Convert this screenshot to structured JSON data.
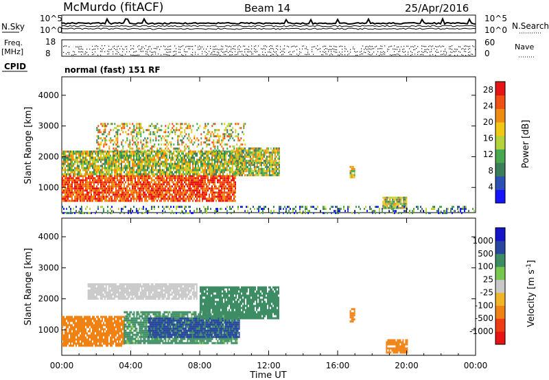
{
  "header": {
    "station": "McMurdo (fitACF)",
    "beam": "Beam 14",
    "date": "25/Apr/2016"
  },
  "noise_panel": {
    "left_label": "N.Sky",
    "right_label": "N.Search",
    "left_ticks": [
      "10^5",
      "10^0"
    ],
    "right_ticks": [
      "10^5",
      "10^0"
    ]
  },
  "freq_panel": {
    "left_label_line1": "Freq.",
    "left_label_line2": "[MHz]",
    "right_label": "Nave",
    "left_ticks": [
      "18",
      "8"
    ],
    "right_ticks": [
      "60",
      "0"
    ]
  },
  "cpid": {
    "label": "CPID",
    "value": "normal (fast) 151 RF"
  },
  "colors": {
    "power_scale": [
      "#1414ff",
      "#2d50b4",
      "#3c7d5a",
      "#48a850",
      "#b4d23c",
      "#f0c814",
      "#f08c14",
      "#f05014",
      "#e61414"
    ],
    "velocity_scale": [
      "#e61414",
      "#f03c14",
      "#f08214",
      "#f0b428",
      "#c8c8c8",
      "#78c850",
      "#3c8c64",
      "#2846a0",
      "#1414c8"
    ]
  },
  "chart_data": [
    {
      "type": "heatmap",
      "title": "Power",
      "xlabel": "Time UT",
      "ylabel": "Slant Range [km]",
      "x_ticks": [
        "00:00",
        "04:00",
        "08:00",
        "12:00",
        "16:00",
        "20:00",
        "00:00"
      ],
      "xlim_hours": [
        0,
        24
      ],
      "y_ticks": [
        1000,
        2000,
        3000,
        4000
      ],
      "ylim": [
        180,
        4600
      ],
      "colorbar": {
        "label": "Power [dB]",
        "ticks": [
          4,
          8,
          12,
          16,
          20,
          24,
          28
        ],
        "range": [
          0,
          30
        ]
      },
      "echo_regions": [
        {
          "t0": 0.0,
          "t1": 10.1,
          "r0": 550,
          "r1": 1400,
          "level": "high"
        },
        {
          "t0": 0.0,
          "t1": 10.5,
          "r0": 1400,
          "r1": 2200,
          "level": "medium"
        },
        {
          "t0": 2.0,
          "t1": 10.6,
          "r0": 2200,
          "r1": 3100,
          "level": "scattered"
        },
        {
          "t0": 10.1,
          "t1": 12.6,
          "r0": 1400,
          "r1": 2300,
          "level": "medium"
        },
        {
          "t0": 16.7,
          "t1": 17.0,
          "r0": 1300,
          "r1": 1700,
          "level": "medium"
        },
        {
          "t0": 18.6,
          "t1": 20.0,
          "r0": 300,
          "r1": 700,
          "level": "medium"
        },
        {
          "t0": 0.0,
          "t1": 24.0,
          "r0": 180,
          "r1": 400,
          "level": "low"
        }
      ]
    },
    {
      "type": "heatmap",
      "title": "Velocity",
      "xlabel": "Time UT",
      "ylabel": "Slant Range [km]",
      "x_ticks": [
        "00:00",
        "04:00",
        "08:00",
        "12:00",
        "16:00",
        "20:00",
        "00:00"
      ],
      "xlim_hours": [
        0,
        24
      ],
      "y_ticks": [
        1000,
        2000,
        3000,
        4000
      ],
      "ylim": [
        180,
        4600
      ],
      "colorbar": {
        "label": "Velocity [m s^-1]",
        "ticks": [
          "1000",
          "500",
          "100",
          "25",
          "-25",
          "-100",
          "-500",
          "-1000"
        ]
      },
      "echo_regions": [
        {
          "t0": 0.0,
          "t1": 3.6,
          "r0": 500,
          "r1": 1450,
          "velocity": -300
        },
        {
          "t0": 3.6,
          "t1": 10.2,
          "r0": 600,
          "r1": 1600,
          "velocity": 150
        },
        {
          "t0": 5.0,
          "t1": 10.3,
          "r0": 800,
          "r1": 1400,
          "velocity": 700
        },
        {
          "t0": 1.5,
          "t1": 7.8,
          "r0": 2000,
          "r1": 2500,
          "velocity": 0
        },
        {
          "t0": 8.0,
          "t1": 12.6,
          "r0": 1400,
          "r1": 2400,
          "velocity": 200
        },
        {
          "t0": 16.7,
          "t1": 17.0,
          "r0": 1300,
          "r1": 1700,
          "velocity": -300
        },
        {
          "t0": 18.8,
          "t1": 20.0,
          "r0": 300,
          "r1": 700,
          "velocity": -200
        }
      ]
    }
  ]
}
